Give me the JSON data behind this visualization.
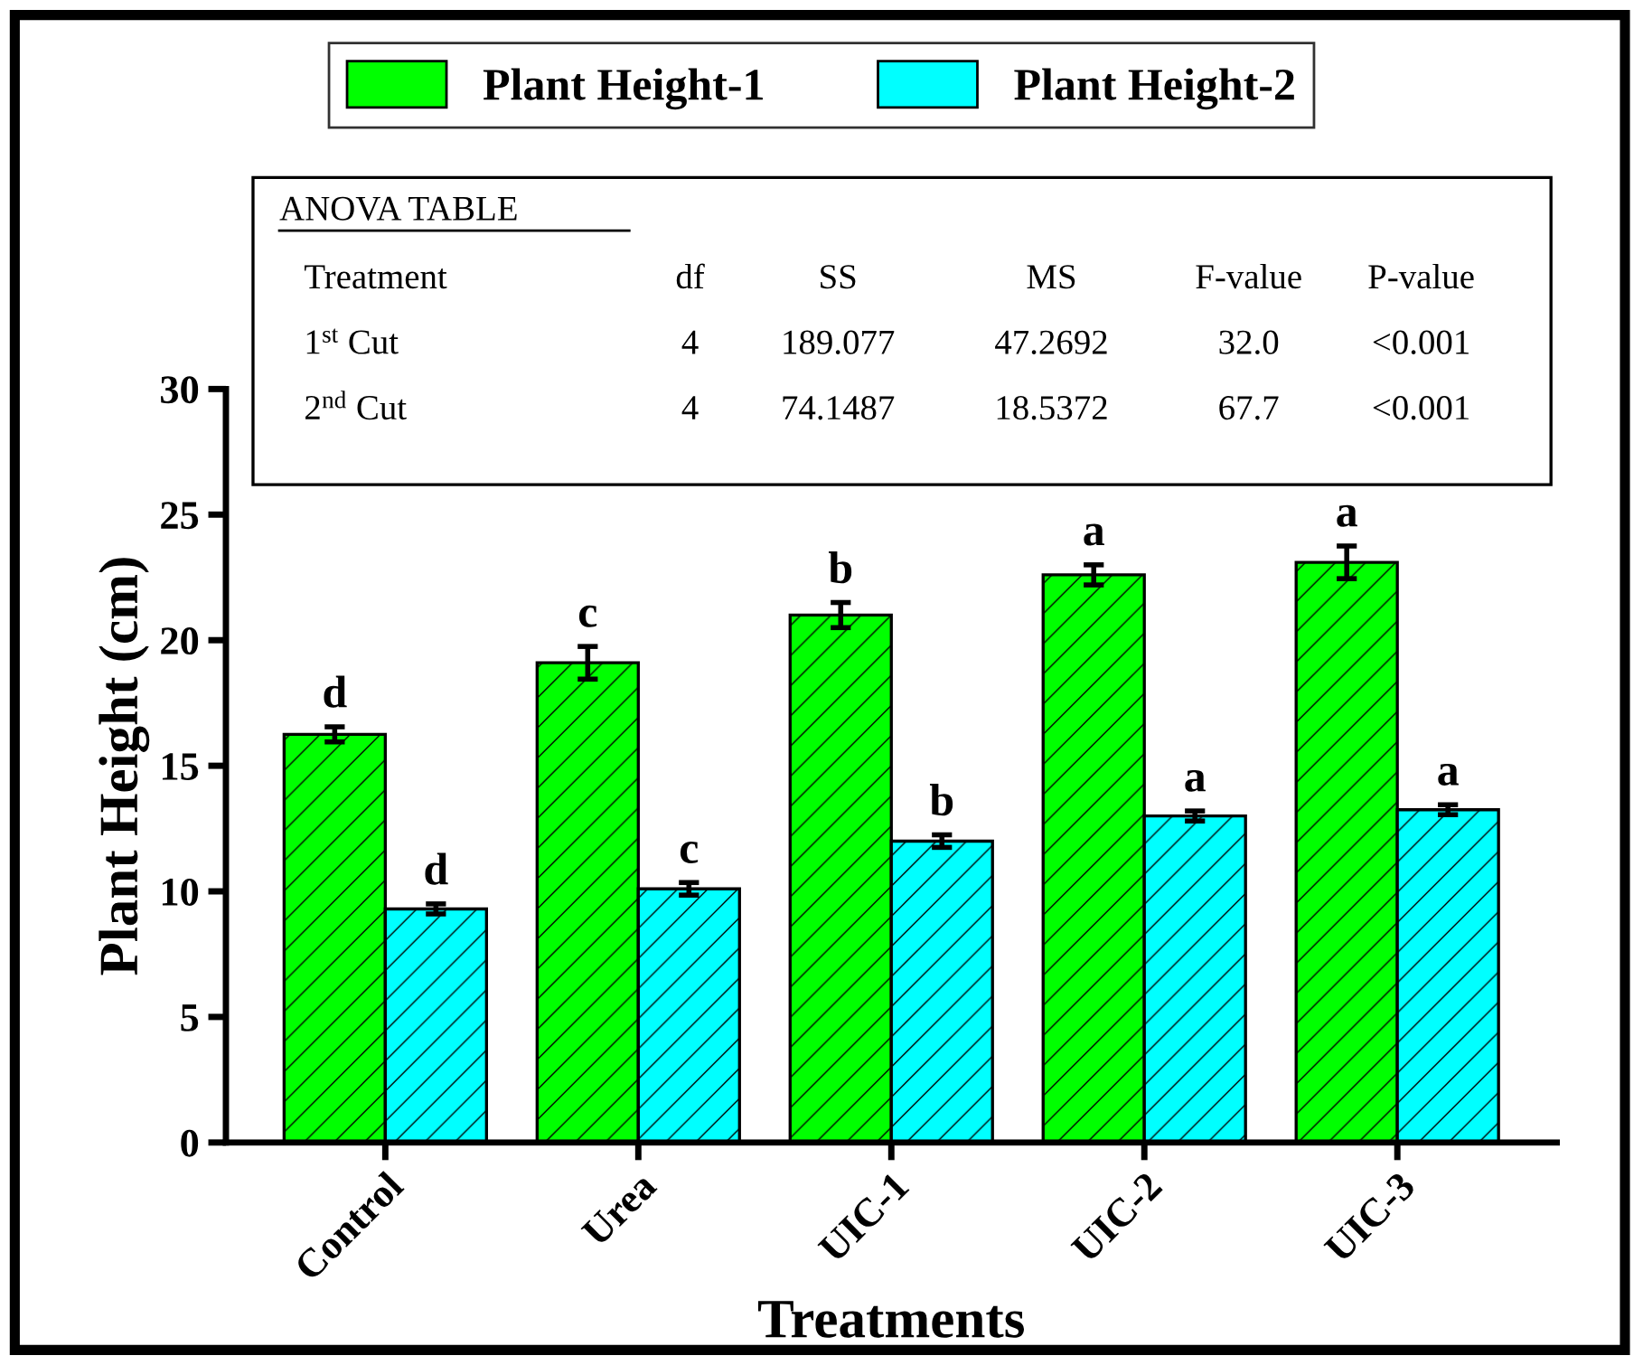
{
  "chart_data": {
    "type": "bar",
    "xlabel": "Treatments",
    "ylabel": "Plant Height (cm)",
    "categories": [
      "Control",
      "Urea",
      "UIC-1",
      "UIC-2",
      "UIC-3"
    ],
    "series": [
      {
        "name": "Plant Height-1",
        "color": "#00ff00",
        "values": [
          16.25,
          19.1,
          21.0,
          22.6,
          23.1
        ],
        "errors": [
          0.3,
          0.65,
          0.5,
          0.4,
          0.65
        ],
        "value_labels": [
          "d",
          "c",
          "b",
          "a",
          "a"
        ]
      },
      {
        "name": "Plant Height-2",
        "color": "#00ffff",
        "values": [
          9.3,
          10.1,
          12.0,
          13.0,
          13.25
        ],
        "errors": [
          0.2,
          0.25,
          0.25,
          0.2,
          0.2
        ],
        "value_labels": [
          "d",
          "c",
          "b",
          "a",
          "a"
        ]
      }
    ],
    "ylim": [
      0,
      30
    ],
    "yticks": [
      0,
      5,
      10,
      15,
      20,
      25,
      30
    ],
    "legend": "top",
    "grid": false,
    "annotations": [
      "ANOVA TABLE",
      "Treatment",
      "df",
      "SS",
      "MS",
      "F-value",
      "P-value",
      "1$^{st}$ Cut",
      "4",
      "189.077",
      "47.2692",
      "32.0",
      "<0.001",
      "2$^{nd}$ Cut",
      "4",
      "74.1487",
      "18.5372",
      "67.7",
      "<0.001"
    ]
  }
}
